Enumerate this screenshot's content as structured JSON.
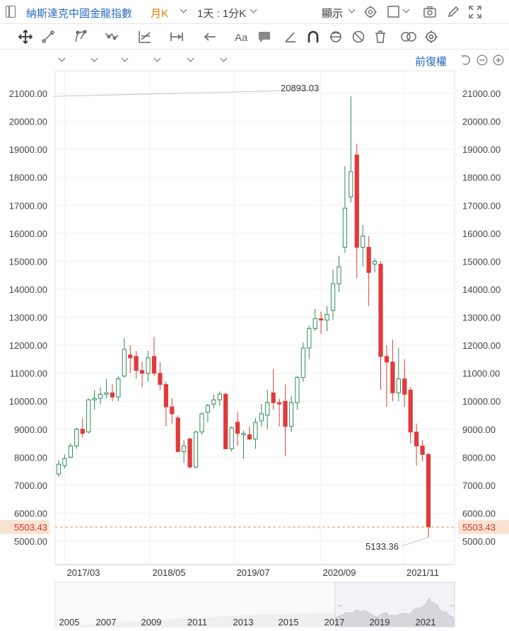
{
  "header": {
    "index_name": "納斯達克中國金龍指數",
    "period": "月K",
    "interval": "1天 : 1分K",
    "display_label": "顯示",
    "restore_label": "前復權"
  },
  "colors": {
    "up": "#2e8b57",
    "down": "#e03a3a",
    "accent_blue": "#2a6cbf",
    "period_orange": "#e07b00",
    "price_line": "#e8944a",
    "price_label_bg": "#fbe3d3"
  },
  "icons": {
    "top": [
      "settings-icon",
      "square-icon",
      "camera-icon",
      "pencil-icon",
      "fullscreen-icon"
    ],
    "toolbar": [
      "crosshair-icon",
      "trend-line-icon",
      "polyline-icon",
      "wave-icon",
      "fibonacci-icon",
      "measure-icon",
      "arrow-left-icon",
      "text-icon",
      "comment-icon",
      "angle-icon",
      "magnet-icon",
      "lock-icon",
      "eye-off-icon",
      "trash-icon",
      "compare-icon",
      "gear-icon"
    ],
    "chart_controls": [
      "undo-icon",
      "zoom-out-icon",
      "zoom-in-icon"
    ]
  },
  "chart_data": {
    "type": "candlestick",
    "title": "",
    "xlabel": "",
    "ylabel": "",
    "ylim": [
      4850,
      21800
    ],
    "y_ticks": [
      "5000.00",
      "6000.00",
      "7000.00",
      "8000.00",
      "9000.00",
      "10000.00",
      "11000.00",
      "12000.00",
      "13000.00",
      "14000.00",
      "15000.00",
      "16000.00",
      "17000.00",
      "18000.00",
      "19000.00",
      "20000.00",
      "21000.00"
    ],
    "x_tick_labels": [
      "2017/03",
      "2018/05",
      "2019/07",
      "2020/09",
      "2021/11"
    ],
    "last_price": "5503.43",
    "annotations": [
      {
        "text": "20893.03",
        "value": 20893.03
      },
      {
        "text": "5133.36",
        "value": 5133.36
      }
    ],
    "candles": [
      {
        "o": 7400,
        "h": 7900,
        "l": 7300,
        "c": 7750
      },
      {
        "o": 7700,
        "h": 8100,
        "l": 7600,
        "c": 7950
      },
      {
        "o": 8000,
        "h": 8500,
        "l": 7950,
        "c": 8400
      },
      {
        "o": 8400,
        "h": 9050,
        "l": 8300,
        "c": 9000
      },
      {
        "o": 9000,
        "h": 9400,
        "l": 8700,
        "c": 8850
      },
      {
        "o": 8900,
        "h": 10100,
        "l": 8850,
        "c": 10050
      },
      {
        "o": 10050,
        "h": 10400,
        "l": 9700,
        "c": 10100
      },
      {
        "o": 10100,
        "h": 10500,
        "l": 9900,
        "c": 10250
      },
      {
        "o": 10250,
        "h": 10800,
        "l": 10100,
        "c": 10300
      },
      {
        "o": 10300,
        "h": 10600,
        "l": 10000,
        "c": 10150
      },
      {
        "o": 10150,
        "h": 10900,
        "l": 10000,
        "c": 10800
      },
      {
        "o": 10900,
        "h": 12250,
        "l": 10850,
        "c": 11850
      },
      {
        "o": 11650,
        "h": 12000,
        "l": 11000,
        "c": 11550
      },
      {
        "o": 11600,
        "h": 11800,
        "l": 10800,
        "c": 11100
      },
      {
        "o": 11100,
        "h": 11400,
        "l": 10500,
        "c": 11000
      },
      {
        "o": 11000,
        "h": 11800,
        "l": 10700,
        "c": 11550
      },
      {
        "o": 11600,
        "h": 12300,
        "l": 10900,
        "c": 11000
      },
      {
        "o": 11000,
        "h": 11400,
        "l": 10400,
        "c": 10600
      },
      {
        "o": 10600,
        "h": 10700,
        "l": 9100,
        "c": 9800
      },
      {
        "o": 9800,
        "h": 10100,
        "l": 9200,
        "c": 9550
      },
      {
        "o": 9400,
        "h": 9500,
        "l": 8200,
        "c": 8200
      },
      {
        "o": 8200,
        "h": 8600,
        "l": 7800,
        "c": 8400
      },
      {
        "o": 8650,
        "h": 8700,
        "l": 7600,
        "c": 7650
      },
      {
        "o": 7650,
        "h": 8950,
        "l": 7600,
        "c": 8900
      },
      {
        "o": 8900,
        "h": 9600,
        "l": 8800,
        "c": 9550
      },
      {
        "o": 9600,
        "h": 9900,
        "l": 9250,
        "c": 9850
      },
      {
        "o": 9900,
        "h": 10250,
        "l": 9750,
        "c": 10050
      },
      {
        "o": 10050,
        "h": 10350,
        "l": 9850,
        "c": 10250
      },
      {
        "o": 10250,
        "h": 10300,
        "l": 8300,
        "c": 8300
      },
      {
        "o": 8300,
        "h": 9100,
        "l": 8200,
        "c": 9050
      },
      {
        "o": 9250,
        "h": 9600,
        "l": 8400,
        "c": 8850
      },
      {
        "o": 8800,
        "h": 8950,
        "l": 7950,
        "c": 8850
      },
      {
        "o": 8800,
        "h": 9100,
        "l": 8600,
        "c": 8650
      },
      {
        "o": 8650,
        "h": 9400,
        "l": 8300,
        "c": 9250
      },
      {
        "o": 9300,
        "h": 9900,
        "l": 9100,
        "c": 9550
      },
      {
        "o": 9500,
        "h": 10400,
        "l": 9000,
        "c": 9950
      },
      {
        "o": 10300,
        "h": 11150,
        "l": 9700,
        "c": 9950
      },
      {
        "o": 9950,
        "h": 10100,
        "l": 9100,
        "c": 9900
      },
      {
        "o": 10000,
        "h": 10600,
        "l": 8050,
        "c": 9100
      },
      {
        "o": 9100,
        "h": 10200,
        "l": 8900,
        "c": 9950
      },
      {
        "o": 9950,
        "h": 10900,
        "l": 9700,
        "c": 10850
      },
      {
        "o": 10850,
        "h": 12100,
        "l": 10700,
        "c": 11900
      },
      {
        "o": 11900,
        "h": 12700,
        "l": 11500,
        "c": 12600
      },
      {
        "o": 12600,
        "h": 13300,
        "l": 12500,
        "c": 12950
      },
      {
        "o": 12950,
        "h": 13200,
        "l": 12400,
        "c": 12900
      },
      {
        "o": 12900,
        "h": 13400,
        "l": 12500,
        "c": 13100
      },
      {
        "o": 13250,
        "h": 14700,
        "l": 12900,
        "c": 14200
      },
      {
        "o": 14200,
        "h": 15200,
        "l": 13900,
        "c": 14800
      },
      {
        "o": 15500,
        "h": 18400,
        "l": 15300,
        "c": 16900
      },
      {
        "o": 17300,
        "h": 20893,
        "l": 17100,
        "c": 18200
      },
      {
        "o": 18800,
        "h": 19200,
        "l": 14400,
        "c": 15500
      },
      {
        "o": 15500,
        "h": 16300,
        "l": 14800,
        "c": 15900
      },
      {
        "o": 15500,
        "h": 15900,
        "l": 13400,
        "c": 14600
      },
      {
        "o": 14900,
        "h": 15100,
        "l": 14600,
        "c": 15000
      },
      {
        "o": 14900,
        "h": 15000,
        "l": 10400,
        "c": 11600
      },
      {
        "o": 11600,
        "h": 12000,
        "l": 9800,
        "c": 11400
      },
      {
        "o": 11400,
        "h": 12200,
        "l": 10000,
        "c": 10300
      },
      {
        "o": 10300,
        "h": 11900,
        "l": 10000,
        "c": 10800
      },
      {
        "o": 10800,
        "h": 11500,
        "l": 9800,
        "c": 10250
      },
      {
        "o": 10400,
        "h": 10500,
        "l": 8500,
        "c": 8900
      },
      {
        "o": 8900,
        "h": 9200,
        "l": 7700,
        "c": 8400
      },
      {
        "o": 8400,
        "h": 8600,
        "l": 7850,
        "c": 8100
      },
      {
        "o": 8100,
        "h": 8150,
        "l": 5133.36,
        "c": 5503.43
      }
    ],
    "navigator": {
      "x_tick_labels": [
        "2005",
        "2007",
        "2009",
        "2011",
        "2013",
        "2015",
        "2017",
        "2019",
        "2021"
      ]
    }
  }
}
